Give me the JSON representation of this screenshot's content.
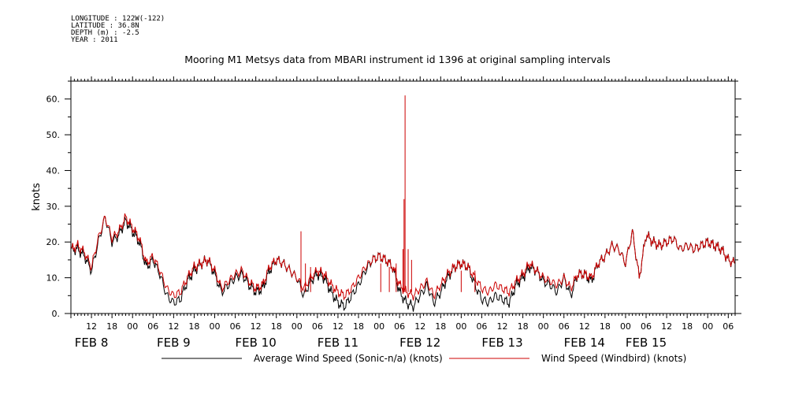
{
  "header": {
    "longitude": "LONGITUDE : 122W(-122)",
    "latitude": "LATITUDE : 36.8N",
    "depth": "DEPTH (m) : -2.5",
    "year": "YEAR : 2011"
  },
  "chart_data": {
    "type": "line",
    "title": "Mooring M1 Metsys data from MBARI instrument id 1396 at original sampling intervals",
    "ylabel": "knots",
    "xlabel": "",
    "ylim": [
      0,
      65
    ],
    "yticks": [
      0,
      10,
      20,
      30,
      40,
      50,
      60
    ],
    "ytick_labels": [
      "0.",
      "10.",
      "20.",
      "30.",
      "40.",
      "50.",
      "60."
    ],
    "xlim_hours": [
      6,
      200
    ],
    "x_unit": "hours since FEB 8 00:00",
    "hour_ticks": [
      {
        "h": 12,
        "label": "12"
      },
      {
        "h": 18,
        "label": "18"
      },
      {
        "h": 24,
        "label": "00"
      },
      {
        "h": 30,
        "label": "06"
      },
      {
        "h": 36,
        "label": "12"
      },
      {
        "h": 42,
        "label": "18"
      },
      {
        "h": 48,
        "label": "00"
      },
      {
        "h": 54,
        "label": "06"
      },
      {
        "h": 60,
        "label": "12"
      },
      {
        "h": 66,
        "label": "18"
      },
      {
        "h": 72,
        "label": "00"
      },
      {
        "h": 78,
        "label": "06"
      },
      {
        "h": 84,
        "label": "12"
      },
      {
        "h": 90,
        "label": "18"
      },
      {
        "h": 96,
        "label": "00"
      },
      {
        "h": 102,
        "label": "06"
      },
      {
        "h": 108,
        "label": "12"
      },
      {
        "h": 114,
        "label": "18"
      },
      {
        "h": 120,
        "label": "00"
      },
      {
        "h": 126,
        "label": "06"
      },
      {
        "h": 132,
        "label": "12"
      },
      {
        "h": 138,
        "label": "18"
      },
      {
        "h": 144,
        "label": "00"
      },
      {
        "h": 150,
        "label": "06"
      },
      {
        "h": 156,
        "label": "12"
      },
      {
        "h": 162,
        "label": "18"
      },
      {
        "h": 168,
        "label": "00"
      },
      {
        "h": 174,
        "label": "06"
      },
      {
        "h": 180,
        "label": "12"
      },
      {
        "h": 186,
        "label": "18"
      },
      {
        "h": 192,
        "label": "00"
      },
      {
        "h": 198,
        "label": "06"
      }
    ],
    "day_labels": [
      {
        "h": 12,
        "label": "FEB  8"
      },
      {
        "h": 36,
        "label": "FEB  9"
      },
      {
        "h": 60,
        "label": "FEB 10"
      },
      {
        "h": 84,
        "label": "FEB 11"
      },
      {
        "h": 108,
        "label": "FEB 12"
      },
      {
        "h": 132,
        "label": "FEB 13"
      },
      {
        "h": 156,
        "label": "FEB 14"
      },
      {
        "h": 174,
        "label": "FEB 15"
      }
    ],
    "series": [
      {
        "name": "Average Wind Speed (Sonic-n/a) (knots)",
        "color": "#000000",
        "x": [
          6,
          8,
          10,
          12,
          14,
          16,
          18,
          20,
          22,
          24,
          26,
          28,
          30,
          32,
          34,
          36,
          38,
          40,
          42,
          44,
          46,
          48,
          50,
          52,
          54,
          56,
          58,
          60,
          62,
          64,
          66,
          68,
          70,
          72,
          74,
          76,
          78,
          80,
          82,
          84,
          86,
          88,
          90,
          92,
          94,
          96,
          98,
          100,
          102,
          104,
          106,
          108,
          110,
          112,
          114,
          116,
          118,
          120,
          122,
          124,
          126,
          128,
          130,
          132,
          134,
          136,
          138,
          140,
          142,
          144,
          146,
          148,
          150,
          152,
          154,
          156,
          158,
          160,
          162,
          164,
          166,
          168,
          170,
          172,
          174,
          176,
          178,
          180,
          182,
          184,
          186,
          188,
          190,
          192,
          194,
          196,
          198,
          200
        ],
        "y": [
          18,
          18,
          16,
          12,
          20,
          27,
          20,
          22,
          26,
          23,
          20,
          13,
          15,
          11,
          5,
          3,
          4,
          9,
          12,
          14,
          15,
          11,
          6,
          8,
          10,
          11,
          8,
          6,
          7,
          12,
          15,
          14,
          12,
          10,
          5,
          9,
          11,
          10,
          6,
          3,
          2,
          5,
          8,
          12,
          15,
          16,
          15,
          13,
          6,
          3,
          2,
          5,
          8,
          3,
          6,
          10,
          13,
          14,
          13,
          8,
          4,
          3,
          5,
          4,
          3,
          8,
          10,
          13,
          12,
          9,
          8,
          6,
          10,
          5,
          11,
          11,
          9,
          14,
          16,
          19,
          18,
          14,
          23,
          10,
          22,
          20,
          19,
          20,
          21,
          18,
          19,
          18,
          19,
          20,
          19,
          18,
          15,
          14
        ]
      },
      {
        "name": "Wind Speed (Windbird) (knots)",
        "color": "#cc0000",
        "x": [
          6,
          8,
          10,
          12,
          14,
          16,
          18,
          20,
          22,
          24,
          26,
          28,
          30,
          32,
          34,
          36,
          38,
          40,
          42,
          44,
          46,
          48,
          50,
          52,
          54,
          56,
          58,
          60,
          62,
          64,
          66,
          68,
          70,
          72,
          74,
          76,
          78,
          80,
          82,
          84,
          86,
          88,
          90,
          92,
          94,
          96,
          98,
          100,
          102,
          104,
          106,
          108,
          110,
          112,
          114,
          116,
          118,
          120,
          122,
          124,
          126,
          128,
          130,
          132,
          134,
          136,
          138,
          140,
          142,
          144,
          146,
          148,
          150,
          152,
          154,
          156,
          158,
          160,
          162,
          164,
          166,
          168,
          170,
          172,
          174,
          176,
          178,
          180,
          182,
          184,
          186,
          188,
          190,
          192,
          194,
          196,
          198,
          200
        ],
        "y": [
          18,
          19,
          17,
          13,
          21,
          27,
          21,
          23,
          27,
          24,
          21,
          14,
          16,
          12,
          7,
          5,
          6,
          10,
          13,
          14,
          15,
          12,
          7,
          9,
          11,
          12,
          9,
          7,
          8,
          13,
          15,
          14,
          12,
          10,
          7,
          10,
          12,
          11,
          8,
          6,
          5,
          7,
          10,
          13,
          15,
          16,
          15,
          13,
          8,
          6,
          5,
          7,
          9,
          5,
          8,
          11,
          13,
          14,
          13,
          10,
          7,
          6,
          8,
          7,
          6,
          9,
          11,
          14,
          12,
          10,
          9,
          8,
          10,
          7,
          11,
          11,
          10,
          14,
          16,
          19,
          18,
          14,
          23,
          10,
          22,
          20,
          19,
          20,
          21,
          18,
          19,
          18,
          19,
          20,
          19,
          18,
          15,
          14
        ],
        "spikes": [
          {
            "x": 73.2,
            "y": 23
          },
          {
            "x": 74.5,
            "y": 14
          },
          {
            "x": 76,
            "y": 13
          },
          {
            "x": 96.5,
            "y": 14
          },
          {
            "x": 99,
            "y": 13
          },
          {
            "x": 101,
            "y": 14
          },
          {
            "x": 103,
            "y": 18
          },
          {
            "x": 103.3,
            "y": 32
          },
          {
            "x": 103.6,
            "y": 61
          },
          {
            "x": 104.5,
            "y": 18
          },
          {
            "x": 105.5,
            "y": 15
          },
          {
            "x": 120,
            "y": 12
          },
          {
            "x": 124,
            "y": 12
          }
        ]
      }
    ]
  }
}
